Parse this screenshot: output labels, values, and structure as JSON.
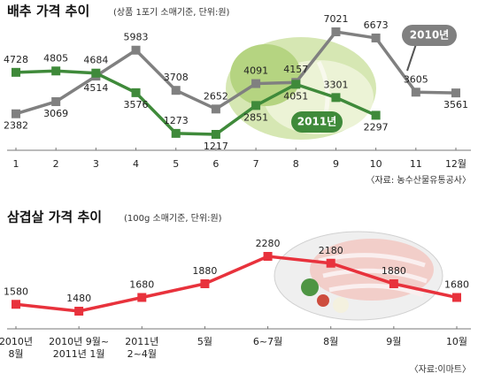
{
  "chart_data": [
    {
      "type": "line",
      "title": "배추 가격 추이",
      "subtitle": "(상품 1포기 소매기준, 단위:원)",
      "categories": [
        "1",
        "2",
        "3",
        "4",
        "5",
        "6",
        "7",
        "8",
        "9",
        "10",
        "11",
        "12월"
      ],
      "series": [
        {
          "name": "2010년",
          "color": "#808080",
          "values": [
            2382,
            3069,
            4514,
            5983,
            3708,
            2652,
            4091,
            4157,
            7021,
            6673,
            3605,
            3561
          ]
        },
        {
          "name": "2011년",
          "color": "#3f8a3a",
          "values": [
            4728,
            4805,
            4684,
            3576,
            1273,
            1217,
            2851,
            4051,
            3301,
            2297,
            null,
            null
          ]
        }
      ],
      "source": "〈자료: 농수산물유통공사〉"
    },
    {
      "type": "line",
      "title": "삼겹살 가격 추이",
      "subtitle": "(100g 소매기준, 단위:원)",
      "categories": [
        [
          "2010년",
          "8월"
        ],
        [
          "2010년 9월~",
          "2011년 1월"
        ],
        [
          "2011년",
          "2~4월"
        ],
        [
          "5월"
        ],
        [
          "6~7월"
        ],
        [
          "8월"
        ],
        [
          "9월"
        ],
        [
          "10월"
        ]
      ],
      "series": [
        {
          "color": "#e8323c",
          "values": [
            1580,
            1480,
            1680,
            1880,
            2280,
            2180,
            1880,
            1680
          ]
        }
      ],
      "source": "〈자료:이마트〉"
    }
  ]
}
